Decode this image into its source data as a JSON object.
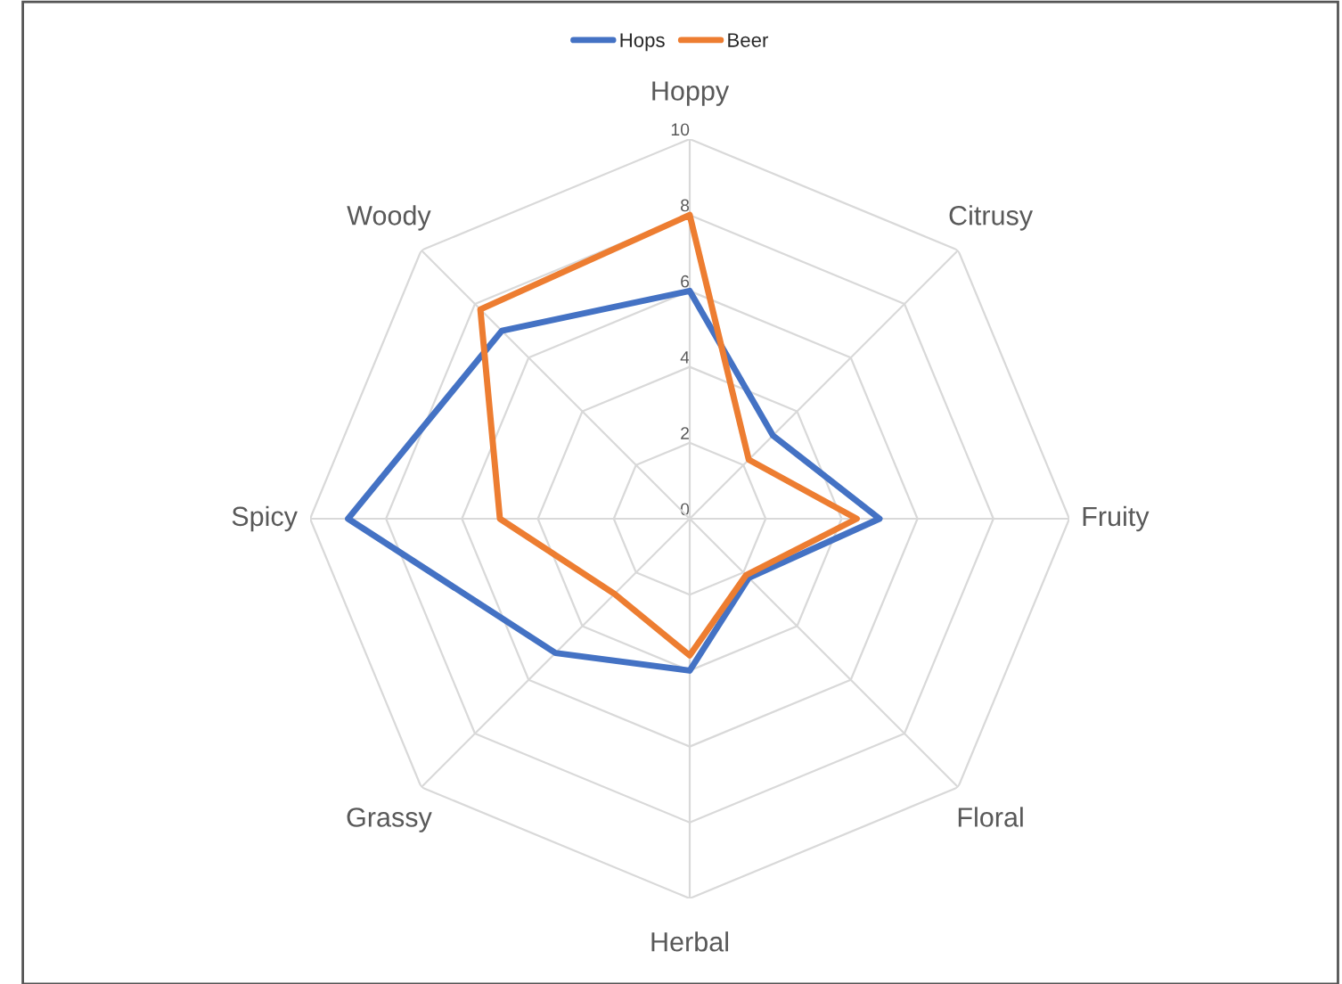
{
  "chart_data": {
    "type": "radar",
    "categories": [
      "Hoppy",
      "Citrusy",
      "Fruity",
      "Floral",
      "Herbal",
      "Grassy",
      "Spicy",
      "Woody"
    ],
    "series": [
      {
        "name": "Hops",
        "color": "#4472c4",
        "values": [
          6,
          3.1,
          5,
          2.2,
          4,
          5,
          9,
          7
        ]
      },
      {
        "name": "Beer",
        "color": "#ed7d31",
        "values": [
          8,
          2.2,
          4.4,
          2.1,
          3.6,
          2.8,
          5,
          7.8
        ]
      }
    ],
    "ylim": [
      0,
      10
    ],
    "yticks": [
      0,
      2,
      4,
      6,
      8,
      10
    ],
    "grid": true,
    "legend": "top",
    "marker": "none",
    "line_style": "solid"
  }
}
